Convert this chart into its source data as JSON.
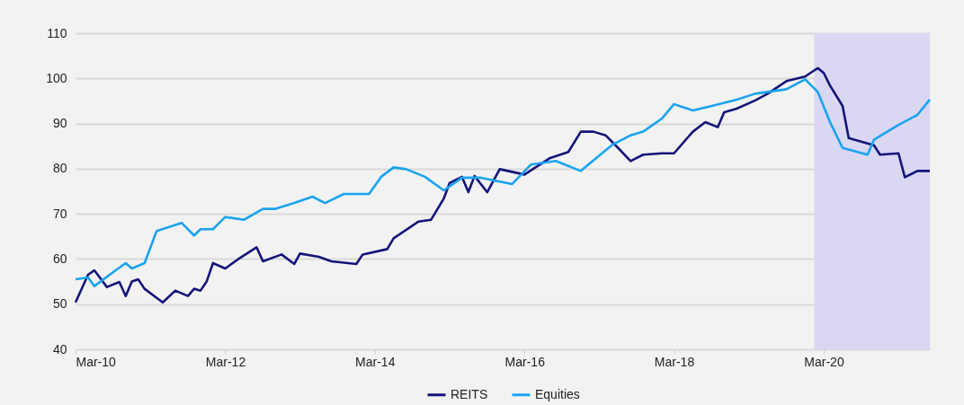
{
  "chart_data": {
    "type": "line",
    "xlim": [
      "2010-03",
      "2021-08"
    ],
    "xticks": [
      {
        "value": "2010-03",
        "label": "Mar-10"
      },
      {
        "value": "2012-03",
        "label": "Mar-12"
      },
      {
        "value": "2014-03",
        "label": "Mar-14"
      },
      {
        "value": "2016-03",
        "label": "Mar-16"
      },
      {
        "value": "2018-03",
        "label": "Mar-18"
      },
      {
        "value": "2020-03",
        "label": "Mar-20"
      }
    ],
    "ylim": [
      40,
      110
    ],
    "yticks": [
      40,
      50,
      60,
      70,
      80,
      90,
      100,
      110
    ],
    "grid": "y",
    "legend": "bottom",
    "line_style": "solid",
    "bands": [
      {
        "axis": "x",
        "from": "2020-01-15",
        "to": "2021-08",
        "color": "#d9d7f2"
      }
    ],
    "series": [
      {
        "name": "REITS",
        "color": "#14147a",
        "x": [
          "2010-03",
          "2010-05",
          "2010-06",
          "2010-08",
          "2010-10",
          "2010-11",
          "2010-12",
          "2011-01",
          "2011-02",
          "2011-05",
          "2011-07",
          "2011-09",
          "2011-10",
          "2011-11",
          "2011-12",
          "2012-01",
          "2012-03",
          "2012-05",
          "2012-08",
          "2012-09",
          "2012-12",
          "2013-02",
          "2013-03",
          "2013-06",
          "2013-08",
          "2013-12",
          "2014-01",
          "2014-05",
          "2014-06",
          "2014-10",
          "2014-12",
          "2015-02",
          "2015-03",
          "2015-05",
          "2015-06",
          "2015-07",
          "2015-09",
          "2015-11",
          "2016-03",
          "2016-07",
          "2016-10",
          "2016-12",
          "2017-02",
          "2017-04",
          "2017-06",
          "2017-08",
          "2017-10",
          "2018-01",
          "2018-03",
          "2018-06",
          "2018-08",
          "2018-10",
          "2018-11",
          "2019-01",
          "2019-04",
          "2019-06",
          "2019-09",
          "2019-12",
          "2020-02",
          "2020-03",
          "2020-04",
          "2020-06",
          "2020-07",
          "2020-10",
          "2020-11",
          "2020-12",
          "2021-03",
          "2021-04",
          "2021-06",
          "2021-08"
        ],
        "values": [
          50.4,
          56.5,
          57.5,
          53.8,
          54.9,
          51.8,
          55.0,
          55.5,
          53.4,
          50.4,
          53.0,
          51.8,
          53.4,
          53.0,
          55.0,
          59.1,
          57.9,
          59.9,
          62.6,
          59.5,
          61.0,
          58.9,
          61.2,
          60.5,
          59.5,
          58.9,
          61.0,
          62.2,
          64.6,
          68.3,
          68.7,
          73.4,
          76.8,
          78.2,
          74.8,
          78.4,
          74.8,
          79.9,
          78.7,
          82.3,
          83.7,
          88.2,
          88.2,
          87.4,
          84.6,
          81.7,
          83.1,
          83.4,
          83.4,
          88.2,
          90.3,
          89.2,
          92.5,
          93.3,
          95.1,
          96.6,
          99.4,
          100.4,
          102.3,
          101.2,
          98.4,
          93.9,
          86.8,
          85.6,
          85.2,
          83.1,
          83.4,
          78.1,
          79.5,
          79.5
        ]
      },
      {
        "name": "Equities",
        "color": "#1aa3f0",
        "x": [
          "2010-03",
          "2010-05",
          "2010-06",
          "2010-09",
          "2010-11",
          "2010-12",
          "2011-02",
          "2011-04",
          "2011-08",
          "2011-10",
          "2011-11",
          "2012-01",
          "2012-03",
          "2012-06",
          "2012-09",
          "2012-11",
          "2013-02",
          "2013-05",
          "2013-07",
          "2013-10",
          "2014-02",
          "2014-04",
          "2014-06",
          "2014-08",
          "2014-11",
          "2015-02",
          "2015-05",
          "2015-08",
          "2016-01",
          "2016-04",
          "2016-08",
          "2016-12",
          "2017-05",
          "2017-08",
          "2017-10",
          "2018-01",
          "2018-03",
          "2018-06",
          "2018-09",
          "2019-01",
          "2019-04",
          "2019-09",
          "2019-12",
          "2020-02",
          "2020-04",
          "2020-06",
          "2020-10",
          "2020-11",
          "2021-03",
          "2021-06",
          "2021-08"
        ],
        "values": [
          55.5,
          55.9,
          54.0,
          57.1,
          59.1,
          57.9,
          59.1,
          66.2,
          68.0,
          65.2,
          66.6,
          66.6,
          69.3,
          68.7,
          71.1,
          71.1,
          72.4,
          73.8,
          72.4,
          74.4,
          74.4,
          78.2,
          80.3,
          79.9,
          78.2,
          75.2,
          78.0,
          78.0,
          76.6,
          80.9,
          81.7,
          79.5,
          85.2,
          87.4,
          88.2,
          91.1,
          94.3,
          92.9,
          93.9,
          95.3,
          96.6,
          97.6,
          99.8,
          97.0,
          90.3,
          84.6,
          83.1,
          86.4,
          89.7,
          91.9,
          95.3
        ]
      }
    ]
  }
}
